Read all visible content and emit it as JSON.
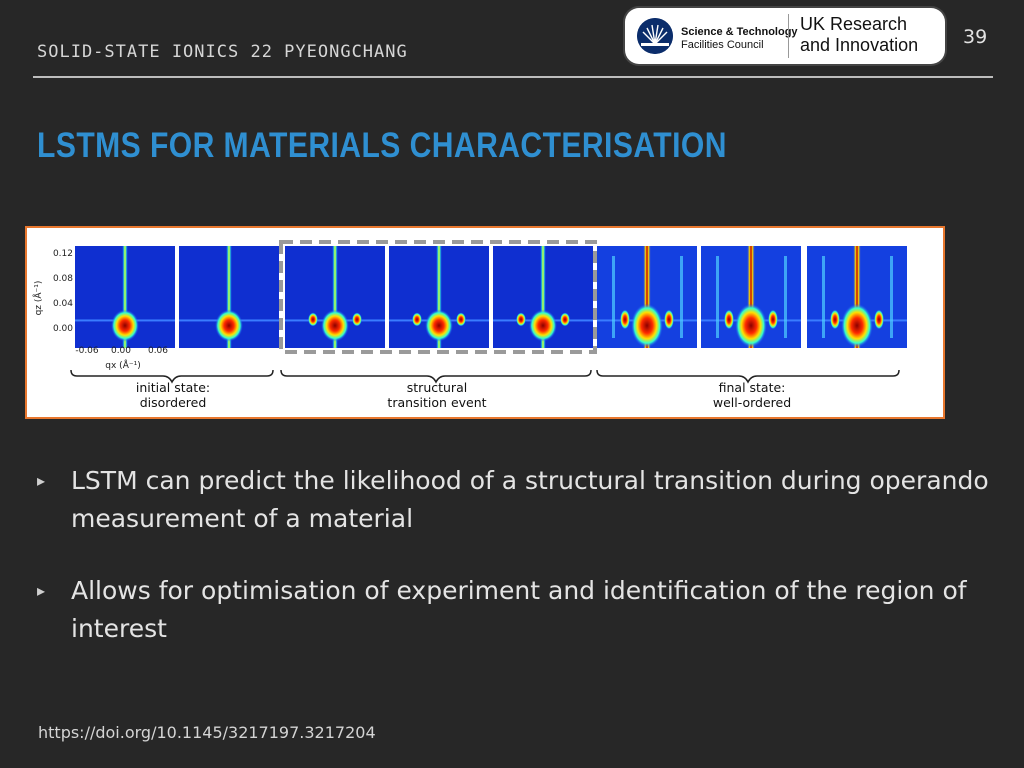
{
  "header": {
    "conference": "SOLID-STATE IONICS 22 PYEONGCHANG",
    "page_number": "39"
  },
  "logo": {
    "stfc_line1": "Science & Technology",
    "stfc_line2": "Facilities Council",
    "ukri_line1": "UK Research",
    "ukri_line2": "and Innovation"
  },
  "slide": {
    "title": "LSTMS FOR MATERIALS CHARACTERISATION"
  },
  "figure": {
    "y_ticks": [
      "0.12",
      "0.08",
      "0.04",
      "0.00"
    ],
    "x_ticks": [
      "-0.06",
      "0.00",
      "0.06"
    ],
    "y_axis_label": "qz (Å⁻¹)",
    "x_axis_label": "qx (Å⁻¹)",
    "groups": [
      {
        "line1": "initial state:",
        "line2": "disordered"
      },
      {
        "line1": "structural",
        "line2": "transition event"
      },
      {
        "line1": "final state:",
        "line2": "well-ordered"
      }
    ],
    "colors": {
      "border": "#e8772e",
      "dashed_box": "#9a9a9a"
    }
  },
  "bullets": [
    {
      "marker": "▸",
      "text": "LSTM can predict the likelihood of a structural transition during operando measurement of a material"
    },
    {
      "marker": "▸",
      "text": "Allows for optimisation of experiment and identification of the region of interest"
    }
  ],
  "footer": {
    "doi": "https://doi.org/10.1145/3217197.3217204"
  },
  "theme": {
    "background": "#272727",
    "title_color": "#2f8fd1"
  }
}
